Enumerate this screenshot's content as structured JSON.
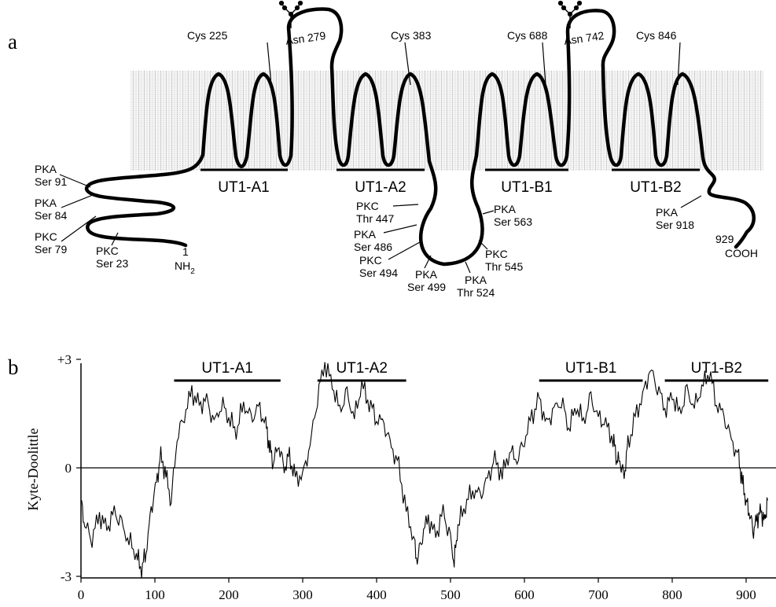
{
  "panel_a": {
    "label": "a",
    "segments": [
      "UT1-A1",
      "UT1-A2",
      "UT1-B1",
      "UT1-B2"
    ],
    "cysteines": [
      "Cys 225",
      "Cys 383",
      "Cys 688",
      "Cys 846"
    ],
    "glycosylation": [
      "Asn 279",
      "Asn 742"
    ],
    "n_term": {
      "number": "1",
      "label": "NH",
      "sub": "2"
    },
    "c_term": {
      "number": "929",
      "label": "COOH"
    },
    "sites_n": [
      {
        "kinase": "PKA",
        "residue": "Ser 91"
      },
      {
        "kinase": "PKA",
        "residue": "Ser  84"
      },
      {
        "kinase": "PKC",
        "residue": "Ser 79"
      },
      {
        "kinase": "PKC",
        "residue": "Ser 23"
      }
    ],
    "sites_loop": [
      {
        "kinase": "PKC",
        "residue": "Thr 447"
      },
      {
        "kinase": "PKA",
        "residue": "Ser 486"
      },
      {
        "kinase": "PKC",
        "residue": "Ser 494"
      },
      {
        "kinase": "PKA",
        "residue": "Ser  499"
      },
      {
        "kinase": "PKA",
        "residue": "Thr  524"
      },
      {
        "kinase": "PKC",
        "residue": "Thr  545"
      },
      {
        "kinase": "PKA",
        "residue": "Ser  563"
      }
    ],
    "sites_c": [
      {
        "kinase": "PKA",
        "residue": "Ser 918"
      }
    ]
  },
  "panel_b": {
    "label": "b",
    "segments": [
      "UT1-A1",
      "UT1-A2",
      "UT1-B1",
      "UT1-B2"
    ]
  },
  "chart_data": {
    "type": "line",
    "ylabel": "Kyte-Doolittle",
    "xlim": [
      0,
      929
    ],
    "ylim": [
      -3,
      3
    ],
    "xticks": [
      "0",
      "100",
      "200",
      "300",
      "400",
      "500",
      "600",
      "700",
      "800",
      "900"
    ],
    "yticks": [
      "+3",
      "0",
      "-3"
    ],
    "segment_ranges": [
      [
        126,
        270
      ],
      [
        320,
        440
      ],
      [
        620,
        760
      ],
      [
        790,
        930
      ]
    ],
    "series": [
      {
        "x": [
          0,
          5,
          15,
          25,
          35,
          45,
          55,
          65,
          75,
          82,
          88,
          95,
          102,
          108,
          115,
          122,
          130,
          140,
          150,
          160,
          170,
          180,
          190,
          200,
          210,
          220,
          230,
          240,
          250,
          255,
          260,
          268,
          275,
          282,
          290,
          300,
          310,
          320,
          330,
          340,
          350,
          360,
          370,
          380,
          390,
          400,
          410,
          420,
          430,
          440,
          450,
          455,
          462,
          470,
          480,
          490,
          500,
          505,
          510,
          520,
          530,
          540,
          550,
          560,
          570,
          580,
          590,
          600,
          610,
          620,
          630,
          640,
          650,
          660,
          670,
          680,
          690,
          700,
          710,
          720,
          725,
          730,
          735,
          740,
          750,
          760,
          770,
          780,
          790,
          800,
          810,
          820,
          830,
          840,
          850,
          860,
          870,
          880,
          890,
          895,
          900,
          905,
          910,
          915,
          920,
          925,
          929
        ],
        "values": [
          -0.9,
          -1.6,
          -1.9,
          -1.3,
          -1.7,
          -1.2,
          -1.6,
          -2.0,
          -2.4,
          -2.8,
          -2.3,
          -1.2,
          -0.4,
          0.3,
          -0.2,
          -0.9,
          0.8,
          1.5,
          2.1,
          1.7,
          1.9,
          1.2,
          1.8,
          1.4,
          1.0,
          1.8,
          1.3,
          1.7,
          1.2,
          0.6,
          0.2,
          0.6,
          0.0,
          0.3,
          -0.3,
          -0.2,
          0.6,
          2.0,
          2.9,
          2.3,
          1.6,
          2.0,
          1.4,
          2.3,
          1.8,
          1.4,
          1.2,
          0.6,
          0.0,
          -1.2,
          -1.9,
          -2.6,
          -1.8,
          -1.4,
          -1.9,
          -1.2,
          -2.0,
          -2.6,
          -1.6,
          -1.0,
          -0.6,
          -0.8,
          -0.3,
          0.2,
          -0.2,
          0.5,
          0.2,
          0.8,
          1.4,
          1.9,
          1.2,
          1.6,
          1.9,
          1.1,
          1.7,
          1.3,
          1.9,
          1.4,
          1.2,
          0.8,
          0.3,
          0.1,
          -0.2,
          0.6,
          1.4,
          2.0,
          2.7,
          2.3,
          1.6,
          2.0,
          1.5,
          2.1,
          1.7,
          2.2,
          2.7,
          1.8,
          1.4,
          0.8,
          0.2,
          -0.4,
          -0.9,
          -1.3,
          -1.7,
          -1.4,
          -1.2,
          -1.5,
          -0.9
        ]
      }
    ]
  }
}
